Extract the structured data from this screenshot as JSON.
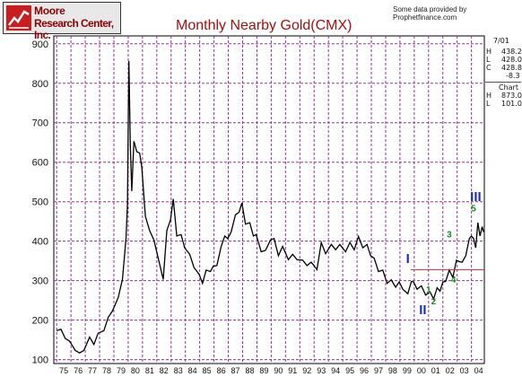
{
  "header": {
    "logo_line1": "Moore",
    "logo_line2": "Research Center, Inc.",
    "credit": "Some data provided by Prophetfinance.com",
    "title": "Monthly Nearby Gold(CMX)"
  },
  "sidebar": {
    "date": "7/01",
    "h_label": "H",
    "h_value": "438.2",
    "l_label": "L",
    "l_value": "428.0",
    "c_label": "C",
    "c_value": "428.8",
    "change": "-8.3",
    "chart_label": "Chart",
    "chart_h_label": "H",
    "chart_h_value": "873.0",
    "chart_l_label": "L",
    "chart_l_value": "101.0"
  },
  "colors": {
    "grid": "#8b3a8b",
    "price": "#000000",
    "support": "#c03030",
    "wave_major": "#1a2fc0",
    "wave_minor": "#1a8a1a",
    "title": "#a01010"
  },
  "chart_data": {
    "type": "line",
    "title": "Monthly Nearby Gold(CMX)",
    "xlabel": "",
    "ylabel": "",
    "ylim": [
      90,
      920
    ],
    "yticks": [
      100,
      200,
      300,
      400,
      500,
      600,
      700,
      800,
      900
    ],
    "xlim": [
      1974.8,
      2004.9
    ],
    "xtick_years": [
      1975,
      1976,
      1977,
      1978,
      1979,
      1980,
      1981,
      1982,
      1983,
      1984,
      1985,
      1986,
      1987,
      1988,
      1989,
      1990,
      1991,
      1992,
      1993,
      1994,
      1995,
      1996,
      1997,
      1998,
      1999,
      2000,
      2001,
      2002,
      2003,
      2004
    ],
    "xticks": [
      "75",
      "76",
      "77",
      "78",
      "79",
      "80",
      "81",
      "82",
      "83",
      "84",
      "85",
      "86",
      "87",
      "88",
      "89",
      "90",
      "91",
      "92",
      "93",
      "94",
      "95",
      "96",
      "97",
      "98",
      "99",
      "00",
      "01",
      "02",
      "03",
      "04"
    ],
    "grid": true,
    "series": [
      {
        "points": [
          [
            1975.0,
            180
          ],
          [
            1975.3,
            170
          ],
          [
            1975.6,
            160
          ],
          [
            1975.9,
            140
          ],
          [
            1976.3,
            130
          ],
          [
            1976.6,
            110
          ],
          [
            1976.9,
            130
          ],
          [
            1977.3,
            150
          ],
          [
            1977.6,
            145
          ],
          [
            1977.9,
            160
          ],
          [
            1978.3,
            180
          ],
          [
            1978.6,
            200
          ],
          [
            1978.9,
            230
          ],
          [
            1979.3,
            250
          ],
          [
            1979.6,
            310
          ],
          [
            1979.85,
            400
          ],
          [
            1979.95,
            500
          ],
          [
            1980.05,
            850
          ],
          [
            1980.15,
            650
          ],
          [
            1980.25,
            520
          ],
          [
            1980.4,
            660
          ],
          [
            1980.6,
            620
          ],
          [
            1980.8,
            630
          ],
          [
            1980.95,
            580
          ],
          [
            1981.2,
            470
          ],
          [
            1981.5,
            420
          ],
          [
            1981.8,
            410
          ],
          [
            1982.1,
            350
          ],
          [
            1982.45,
            310
          ],
          [
            1982.7,
            420
          ],
          [
            1982.95,
            460
          ],
          [
            1983.15,
            500
          ],
          [
            1983.4,
            420
          ],
          [
            1983.7,
            410
          ],
          [
            1983.95,
            390
          ],
          [
            1984.3,
            360
          ],
          [
            1984.6,
            340
          ],
          [
            1984.95,
            310
          ],
          [
            1985.2,
            300
          ],
          [
            1985.45,
            320
          ],
          [
            1985.75,
            330
          ],
          [
            1985.95,
            330
          ],
          [
            1986.2,
            345
          ],
          [
            1986.5,
            380
          ],
          [
            1986.75,
            420
          ],
          [
            1986.95,
            400
          ],
          [
            1987.2,
            430
          ],
          [
            1987.5,
            460
          ],
          [
            1987.75,
            480
          ],
          [
            1987.95,
            490
          ],
          [
            1988.2,
            450
          ],
          [
            1988.5,
            440
          ],
          [
            1988.75,
            420
          ],
          [
            1988.95,
            410
          ],
          [
            1989.3,
            380
          ],
          [
            1989.6,
            370
          ],
          [
            1989.95,
            410
          ],
          [
            1990.2,
            400
          ],
          [
            1990.5,
            370
          ],
          [
            1990.8,
            380
          ],
          [
            1991.2,
            360
          ],
          [
            1991.5,
            360
          ],
          [
            1991.8,
            360
          ],
          [
            1992.2,
            345
          ],
          [
            1992.5,
            345
          ],
          [
            1992.8,
            340
          ],
          [
            1993.2,
            335
          ],
          [
            1993.5,
            390
          ],
          [
            1993.8,
            375
          ],
          [
            1994.2,
            385
          ],
          [
            1994.5,
            385
          ],
          [
            1994.8,
            385
          ],
          [
            1995.2,
            380
          ],
          [
            1995.5,
            390
          ],
          [
            1995.8,
            385
          ],
          [
            1996.1,
            405
          ],
          [
            1996.4,
            390
          ],
          [
            1996.7,
            385
          ],
          [
            1996.95,
            370
          ],
          [
            1997.2,
            350
          ],
          [
            1997.5,
            330
          ],
          [
            1997.8,
            320
          ],
          [
            1998.1,
            300
          ],
          [
            1998.4,
            295
          ],
          [
            1998.7,
            290
          ],
          [
            1998.95,
            290
          ],
          [
            1999.2,
            285
          ],
          [
            1999.55,
            260
          ],
          [
            1999.8,
            305
          ],
          [
            1999.95,
            290
          ],
          [
            2000.2,
            285
          ],
          [
            2000.5,
            280
          ],
          [
            2000.8,
            270
          ],
          [
            2001.1,
            265
          ],
          [
            2001.35,
            260
          ],
          [
            2001.6,
            275
          ],
          [
            2001.8,
            280
          ],
          [
            2002.0,
            290
          ],
          [
            2002.2,
            305
          ],
          [
            2002.45,
            320
          ],
          [
            2002.7,
            315
          ],
          [
            2002.95,
            345
          ],
          [
            2003.15,
            355
          ],
          [
            2003.35,
            340
          ],
          [
            2003.6,
            370
          ],
          [
            2003.85,
            400
          ],
          [
            2004.0,
            420
          ],
          [
            2004.15,
            400
          ],
          [
            2004.3,
            390
          ],
          [
            2004.45,
            440
          ],
          [
            2004.6,
            420
          ],
          [
            2004.75,
            430
          ],
          [
            2004.85,
            430
          ]
        ]
      }
    ],
    "support_line": {
      "y": 328,
      "x_start": 1999.75,
      "x_end": 2004.9
    },
    "annotations": [
      {
        "text": "I",
        "x": 1999.55,
        "y": 345,
        "style": "major"
      },
      {
        "text": "II",
        "x": 2000.6,
        "y": 215,
        "style": "major"
      },
      {
        "text": "III",
        "x": 2004.3,
        "y": 502,
        "style": "major"
      },
      {
        "text": "1",
        "x": 2001.0,
        "y": 270,
        "style": "minor"
      },
      {
        "text": "2",
        "x": 2001.35,
        "y": 240,
        "style": "minor"
      },
      {
        "text": "3",
        "x": 2002.45,
        "y": 410,
        "style": "minor"
      },
      {
        "text": "4",
        "x": 2002.75,
        "y": 295,
        "style": "minor"
      },
      {
        "text": "5",
        "x": 2004.15,
        "y": 475,
        "style": "minor"
      }
    ]
  }
}
